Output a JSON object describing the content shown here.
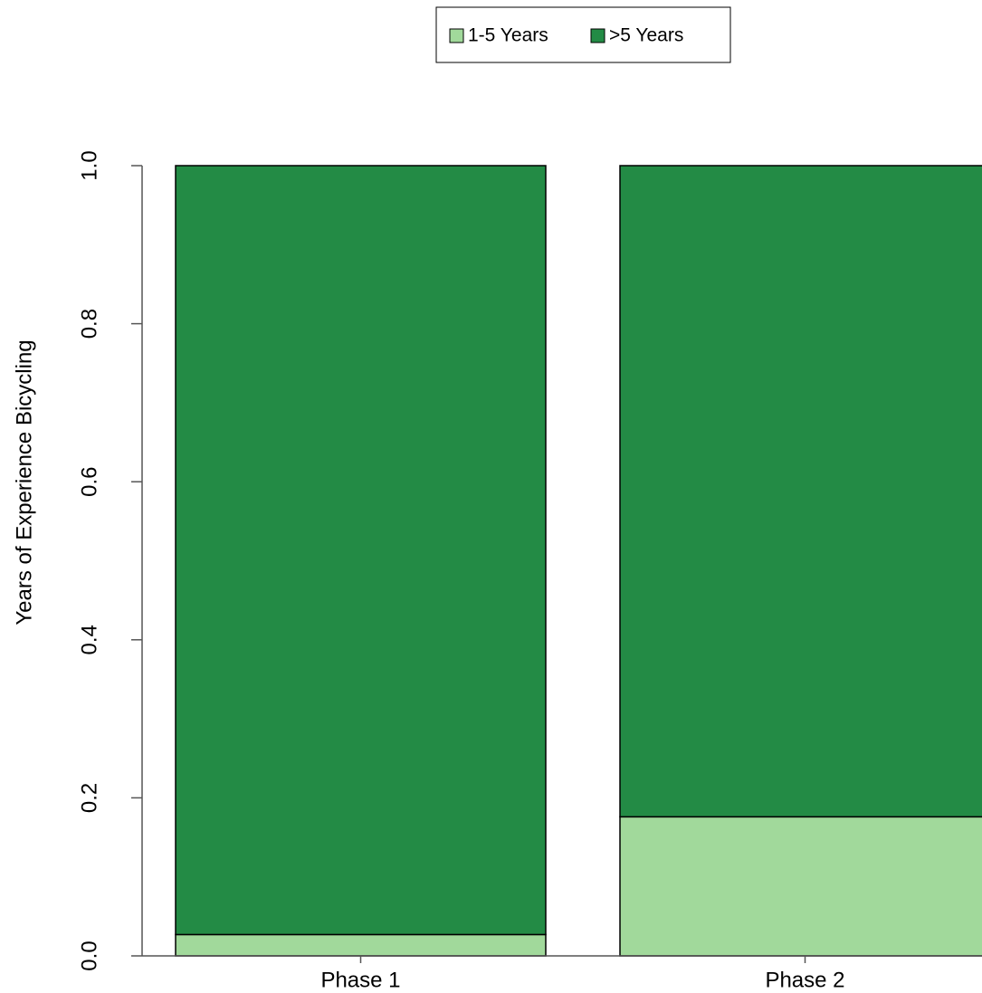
{
  "chart_data": {
    "type": "stacked-bar",
    "y_label": "Years of Experience Bicycling",
    "categories": [
      "Phase 1",
      "Phase 2"
    ],
    "series": [
      {
        "name": "1-5 Years",
        "color": "#a1d99b",
        "values": [
          0.027,
          0.176
        ]
      },
      {
        "name": ">5 Years",
        "color": "#238b45",
        "values": [
          0.973,
          0.824
        ]
      }
    ],
    "ylim": [
      0,
      1
    ],
    "yticks": [
      {
        "value": 0,
        "label": "0.0"
      },
      {
        "value": 0.2,
        "label": "0.2"
      },
      {
        "value": 0.4,
        "label": "0.4"
      },
      {
        "value": 0.6,
        "label": "0.6"
      },
      {
        "value": 0.8,
        "label": "0.8"
      },
      {
        "value": 1,
        "label": "1.0"
      }
    ],
    "legend": "top"
  }
}
